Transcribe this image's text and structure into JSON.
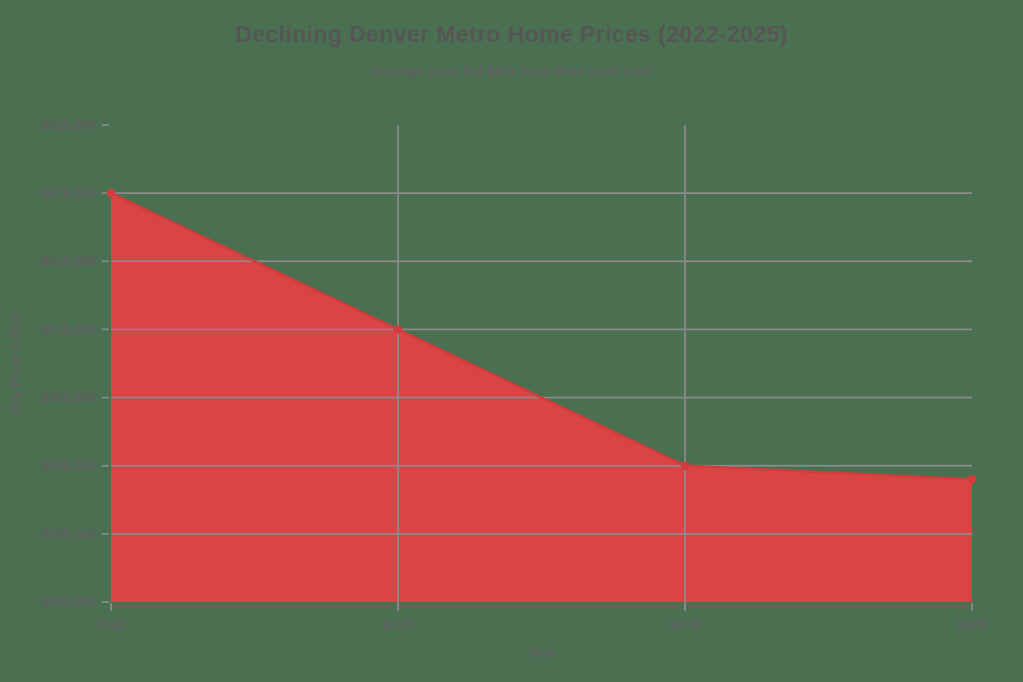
{
  "chart_data": {
    "type": "area",
    "title": "Declining Denver Metro Home Prices (2022-2025)",
    "subtitle": "Average price fell $21k from 2022 peak level",
    "xlabel": "Year",
    "ylabel": "Avg Price (USD)",
    "x": [
      2022,
      2023,
      2024,
      2025
    ],
    "values": [
      620000,
      610000,
      600000,
      599000
    ],
    "xlim": [
      2022,
      2025
    ],
    "ylim": [
      590000,
      625000
    ],
    "y_tick_values": [
      625000,
      620000,
      615000,
      610000,
      605000,
      600000,
      595000,
      590000
    ],
    "y_tick_labels": [
      "$625,000",
      "$620,000",
      "$615,000",
      "$610,000",
      "$605,000",
      "$600,000",
      "$595,000",
      "$590,000"
    ],
    "x_tick_labels": [
      "2022",
      "2023",
      "2024",
      "2025"
    ],
    "grid": true,
    "legend": false,
    "markers": true,
    "colors": {
      "fill": "#d94444",
      "line": "#d23c3c",
      "marker": "#d23c3c",
      "grid": "#8b8b8b",
      "tick_text": "#5f5f5f",
      "title_text": "#565656",
      "background": "#4a7051"
    }
  }
}
